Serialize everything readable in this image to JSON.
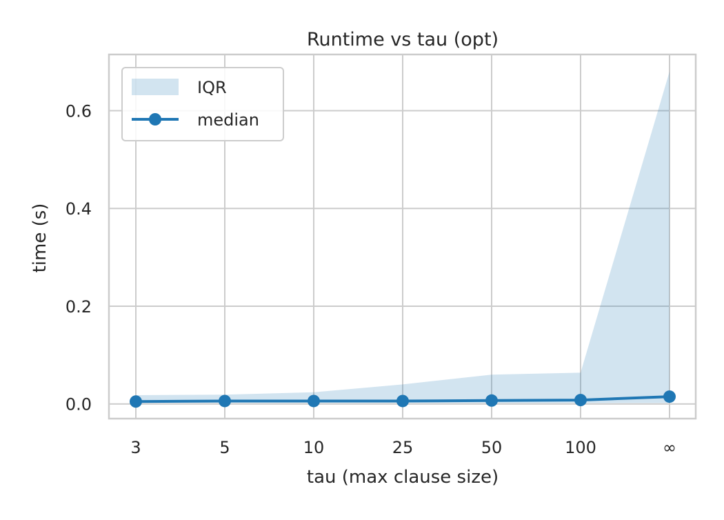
{
  "chart_data": {
    "type": "line",
    "title": "Runtime vs tau (opt)",
    "xlabel": "tau (max clause size)",
    "ylabel": "time (s)",
    "categories": [
      "3",
      "5",
      "10",
      "25",
      "50",
      "100",
      "∞"
    ],
    "series": [
      {
        "name": "median",
        "type": "line",
        "marker": "circle",
        "values": [
          0.005,
          0.006,
          0.006,
          0.006,
          0.007,
          0.008,
          0.015
        ]
      }
    ],
    "band": {
      "name": "IQR",
      "lower": [
        0.002,
        0.002,
        0.002,
        0.002,
        0.002,
        0.002,
        0.002
      ],
      "upper": [
        0.018,
        0.019,
        0.024,
        0.04,
        0.06,
        0.064,
        0.68
      ]
    },
    "ylim": [
      -0.03,
      0.715
    ],
    "yticks": [
      0.0,
      0.2,
      0.4,
      0.6
    ],
    "ytick_labels": [
      "0.0",
      "0.2",
      "0.4",
      "0.6"
    ],
    "grid": true,
    "legend_position": "top-left",
    "colors": {
      "line": "#1f77b4",
      "band": "#1f77b4",
      "grid": "#cccccc",
      "spine": "#cccccc"
    }
  }
}
